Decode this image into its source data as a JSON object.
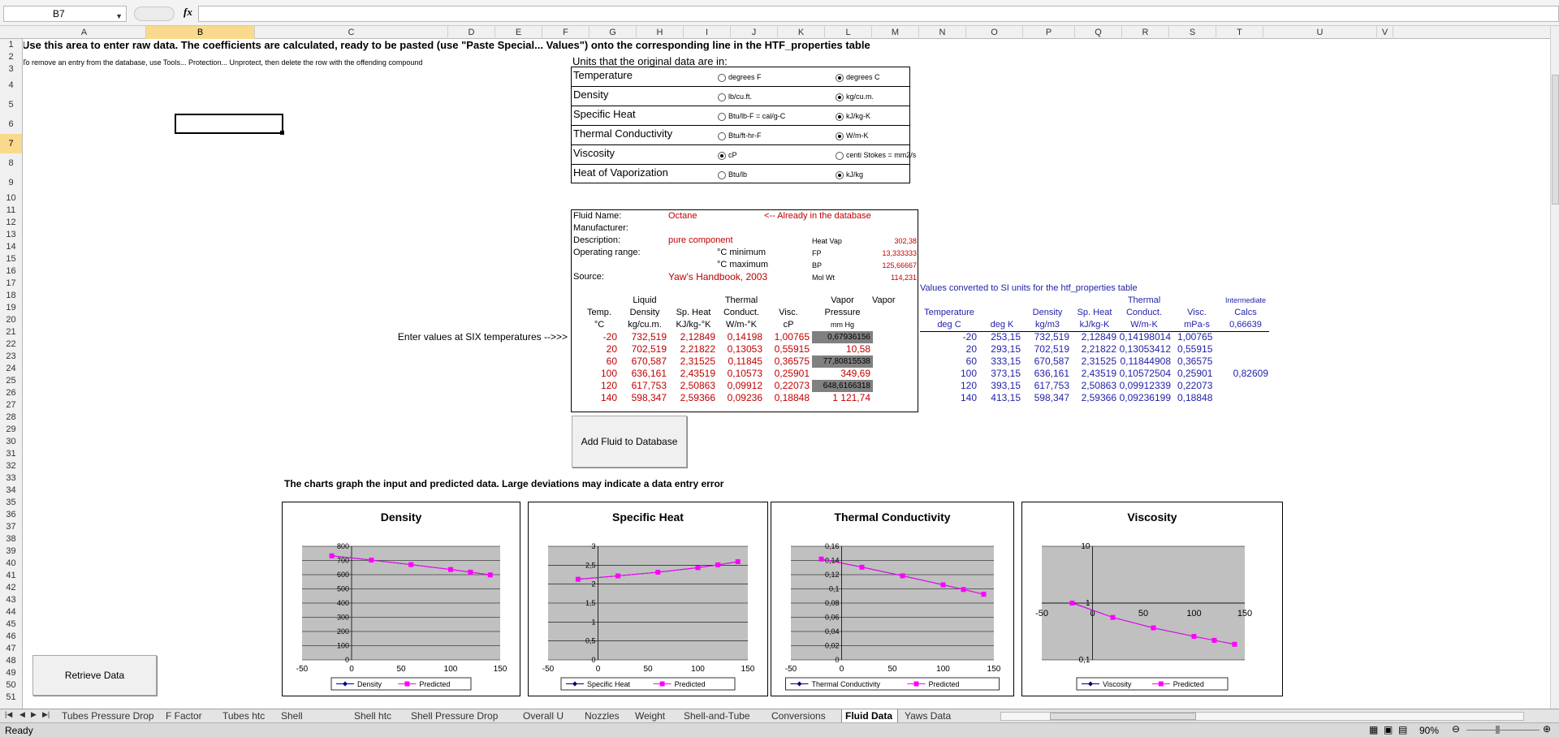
{
  "namebox": "B7",
  "columns": [
    "A",
    "B",
    "C",
    "D",
    "E",
    "F",
    "G",
    "H",
    "I",
    "J",
    "K",
    "L",
    "M",
    "N",
    "O",
    "P",
    "Q",
    "R",
    "S",
    "T",
    "U",
    "V"
  ],
  "rows": [
    "1",
    "2",
    "3",
    "4",
    "5",
    "6",
    "7",
    "8",
    "9",
    "10",
    "11",
    "12",
    "13",
    "14",
    "15",
    "16",
    "17",
    "18",
    "19",
    "20",
    "21",
    "22",
    "23",
    "24",
    "25",
    "26",
    "27",
    "28",
    "29",
    "30",
    "31",
    "32",
    "33",
    "34",
    "35",
    "36",
    "37",
    "38",
    "39",
    "40",
    "41",
    "42",
    "43",
    "44",
    "45",
    "46",
    "47",
    "48",
    "49",
    "50",
    "51"
  ],
  "header_text": "Use this area to enter raw data. The coefficients are calculated, ready to be pasted (use \"Paste Special... Values\") onto the corresponding line in the HTF_properties table",
  "remove_note": "To remove an entry from the database, use Tools... Protection... Unprotect, then delete the row with the offending compound",
  "units": {
    "title": "Units that the original data are in:",
    "rows": [
      {
        "label": "Temperature",
        "opt1": "degrees F",
        "opt1_on": false,
        "opt2": "degrees C",
        "opt2_on": true
      },
      {
        "label": "Density",
        "opt1": "lb/cu.ft.",
        "opt1_on": false,
        "opt2": "kg/cu.m.",
        "opt2_on": true
      },
      {
        "label": "Specific Heat",
        "opt1": "Btu/lb-F = cal/g-C",
        "opt1_on": false,
        "opt2": "kJ/kg-K",
        "opt2_on": true
      },
      {
        "label": "Thermal Conductivity",
        "opt1": "Btu/ft-hr-F",
        "opt1_on": false,
        "opt2": "W/m-K",
        "opt2_on": true
      },
      {
        "label": "Viscosity",
        "opt1": "cP",
        "opt1_on": true,
        "opt2": "centi Stokes = mm2/s",
        "opt2_on": false
      },
      {
        "label": "Heat of Vaporization",
        "opt1": "Btu/lb",
        "opt1_on": false,
        "opt2": "kJ/kg",
        "opt2_on": true
      }
    ]
  },
  "fluid": {
    "name_label": "Fluid Name:",
    "name": "Octane",
    "db_note": "<-- Already in the database",
    "manufacturer_label": "Manufacturer:",
    "description_label": "Description:",
    "description": "pure component",
    "range_label": "Operating range:",
    "min_label": "°C minimum",
    "max_label": "°C maximum",
    "source_label": "Source:",
    "source": "Yaw's Handbook, 2003",
    "heatvap_label": "Heat Vap",
    "heatvap": "302,38",
    "fp_label": "FP",
    "fp": "13,333333",
    "bp_label": "BP",
    "bp": "125,66667",
    "molwt_label": "Mol Wt",
    "molwt": "114,231"
  },
  "enter_values_note": "Enter values at SIX temperatures -->>>",
  "input_headers": {
    "temp": [
      "Temp.",
      "°C"
    ],
    "density": [
      "Liquid",
      "Density",
      "kg/cu.m."
    ],
    "sp_heat": [
      "Sp. Heat",
      "KJ/kg-°K"
    ],
    "thermal": [
      "Thermal",
      "Conduct.",
      "W/m-°K"
    ],
    "visc": [
      "Visc.",
      "cP"
    ],
    "vapor": [
      "Vapor",
      "Pressure",
      "mm Hg"
    ],
    "vapor2": "Vapor"
  },
  "input_rows": [
    {
      "t": "-20",
      "d": "732,519",
      "cp": "2,12849",
      "k": "0,14198",
      "v": "1,00765",
      "vp": "0,67936156",
      "grey": true
    },
    {
      "t": "20",
      "d": "702,519",
      "cp": "2,21822",
      "k": "0,13053",
      "v": "0,55915",
      "vp": "10,58",
      "grey": false
    },
    {
      "t": "60",
      "d": "670,587",
      "cp": "2,31525",
      "k": "0,11845",
      "v": "0,36575",
      "vp": "77,80815538",
      "grey": true
    },
    {
      "t": "100",
      "d": "636,161",
      "cp": "2,43519",
      "k": "0,10573",
      "v": "0,25901",
      "vp": "349,69",
      "grey": false
    },
    {
      "t": "120",
      "d": "617,753",
      "cp": "2,50863",
      "k": "0,09912",
      "v": "0,22073",
      "vp": "648,6166318",
      "grey": true
    },
    {
      "t": "140",
      "d": "598,347",
      "cp": "2,59366",
      "k": "0,09236",
      "v": "0,18848",
      "vp": "1 121,74",
      "grey": false
    }
  ],
  "si": {
    "title": "Values converted to SI units for the htf_properties table",
    "h_temp": [
      "Temperature",
      "deg C"
    ],
    "h_k": "deg K",
    "h_density": [
      "Density",
      "kg/m3"
    ],
    "h_sp": [
      "Sp. Heat",
      "kJ/kg-K"
    ],
    "h_thermal": [
      "Thermal",
      "Conduct.",
      "W/m-K"
    ],
    "h_visc": [
      "Visc.",
      "mPa-s"
    ],
    "h_inter": [
      "Intermediate",
      "Calcs"
    ],
    "inter_val": "0,66639",
    "rows": [
      {
        "c": "-20",
        "k": "253,15",
        "d": "732,519",
        "cp": "2,12849",
        "th": "0,14198014",
        "v": "1,00765",
        "x": ""
      },
      {
        "c": "20",
        "k": "293,15",
        "d": "702,519",
        "cp": "2,21822",
        "th": "0,13053412",
        "v": "0,55915",
        "x": ""
      },
      {
        "c": "60",
        "k": "333,15",
        "d": "670,587",
        "cp": "2,31525",
        "th": "0,11844908",
        "v": "0,36575",
        "x": ""
      },
      {
        "c": "100",
        "k": "373,15",
        "d": "636,161",
        "cp": "2,43519",
        "th": "0,10572504",
        "v": "0,25901",
        "x": "0,82609"
      },
      {
        "c": "120",
        "k": "393,15",
        "d": "617,753",
        "cp": "2,50863",
        "th": "0,09912339",
        "v": "0,22073",
        "x": ""
      },
      {
        "c": "140",
        "k": "413,15",
        "d": "598,347",
        "cp": "2,59366",
        "th": "0,09236199",
        "v": "0,18848",
        "x": ""
      }
    ]
  },
  "buttons": {
    "add": "Add Fluid to Database",
    "retrieve": "Retrieve Data"
  },
  "charts_note": "The charts graph the input and predicted data. Large deviations may indicate a data entry error",
  "chart_data": [
    {
      "type": "line",
      "title": "Density",
      "x": [
        -20,
        20,
        60,
        100,
        120,
        140
      ],
      "xlim": [
        -50,
        150
      ],
      "xticks": [
        "-50",
        "0",
        "50",
        "100",
        "150"
      ],
      "ylim": [
        0,
        800
      ],
      "yticks": [
        "0",
        "100",
        "200",
        "300",
        "400",
        "500",
        "600",
        "700",
        "800"
      ],
      "legend": "bottom",
      "colors": [
        "#000080",
        "#ff00ff"
      ],
      "series": [
        {
          "name": "Density",
          "values": [
            732.519,
            702.519,
            670.587,
            636.161,
            617.753,
            598.347
          ]
        },
        {
          "name": "Predicted",
          "values": [
            732.5,
            702.5,
            670.6,
            636.2,
            617.8,
            598.3
          ]
        }
      ]
    },
    {
      "type": "line",
      "title": "Specific Heat",
      "x": [
        -20,
        20,
        60,
        100,
        120,
        140
      ],
      "xlim": [
        -50,
        150
      ],
      "xticks": [
        "-50",
        "0",
        "50",
        "100",
        "150"
      ],
      "ylim": [
        0,
        3
      ],
      "yticks": [
        "0",
        "0,5",
        "1",
        "1,5",
        "2",
        "2,5",
        "3"
      ],
      "legend": "bottom",
      "colors": [
        "#000080",
        "#ff00ff"
      ],
      "series": [
        {
          "name": "Specific Heat",
          "values": [
            2.12849,
            2.21822,
            2.31525,
            2.43519,
            2.50863,
            2.59366
          ]
        },
        {
          "name": "Predicted",
          "values": [
            2.128,
            2.218,
            2.315,
            2.435,
            2.509,
            2.594
          ]
        }
      ]
    },
    {
      "type": "line",
      "title": "Thermal Conductivity",
      "x": [
        -20,
        20,
        60,
        100,
        120,
        140
      ],
      "xlim": [
        -50,
        150
      ],
      "xticks": [
        "-50",
        "0",
        "50",
        "100",
        "150"
      ],
      "ylim": [
        0,
        0.16
      ],
      "yticks": [
        "0",
        "0,02",
        "0,04",
        "0,06",
        "0,08",
        "0,1",
        "0,12",
        "0,14",
        "0,16"
      ],
      "legend": "bottom",
      "colors": [
        "#000080",
        "#ff00ff"
      ],
      "series": [
        {
          "name": "Thermal Conductivity",
          "values": [
            0.14198,
            0.13053,
            0.11845,
            0.10573,
            0.09912,
            0.09236
          ]
        },
        {
          "name": "Predicted",
          "values": [
            0.142,
            0.1305,
            0.1184,
            0.1057,
            0.0991,
            0.0924
          ]
        }
      ]
    },
    {
      "type": "line",
      "title": "Viscosity",
      "x": [
        -20,
        20,
        60,
        100,
        120,
        140
      ],
      "xlim": [
        -50,
        150
      ],
      "xticks": [
        "-50",
        "0",
        "50",
        "100",
        "150"
      ],
      "ylim": [
        0.1,
        10
      ],
      "log": true,
      "yticks": [
        "0,1",
        "1",
        "10"
      ],
      "legend": "bottom",
      "colors": [
        "#000080",
        "#ff00ff"
      ],
      "series": [
        {
          "name": "Viscosity",
          "values": [
            1.00765,
            0.55915,
            0.36575,
            0.25901,
            0.22073,
            0.18848
          ]
        },
        {
          "name": "Predicted",
          "values": [
            1.0,
            0.559,
            0.366,
            0.259,
            0.221,
            0.188
          ]
        }
      ]
    }
  ],
  "tabs": [
    "Tubes Pressure Drop",
    "F Factor",
    "Tubes htc",
    "Shell Geometry",
    "Shell htc",
    "Shell Pressure Drop",
    "Overall U",
    "Nozzles",
    "Weight",
    "Shell-and-Tube",
    "Conversions",
    "Fluid Data",
    "Yaws Data"
  ],
  "active_tab": "Fluid Data",
  "status": {
    "ready": "Ready",
    "zoom": "90%"
  }
}
